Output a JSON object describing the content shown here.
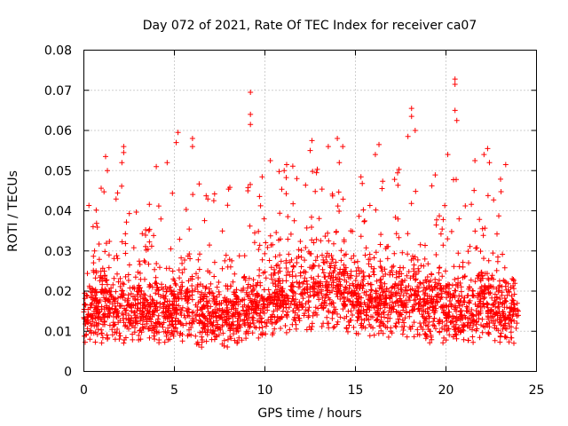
{
  "chart_data": {
    "type": "scatter",
    "title": "Day 072 of 2021, Rate Of TEC Index for receiver ca07",
    "xlabel": "GPS time / hours",
    "ylabel": "ROTI / TECUs",
    "xlim": [
      0,
      25
    ],
    "ylim": [
      0,
      0.08
    ],
    "xticks": [
      "0",
      "5",
      "10",
      "15",
      "20",
      "25"
    ],
    "yticks": [
      "0",
      "0.01",
      "0.02",
      "0.03",
      "0.04",
      "0.05",
      "0.06",
      "0.07",
      "0.08"
    ],
    "grid": true,
    "marker": "plus",
    "color": "#ff0000",
    "density_profile": {
      "x": [
        0,
        1,
        2,
        3,
        4,
        5,
        6,
        7,
        8,
        9,
        10,
        11,
        12,
        13,
        14,
        15,
        16,
        17,
        18,
        19,
        20,
        21,
        22,
        23,
        24
      ],
      "typical_low": [
        0.007,
        0.007,
        0.007,
        0.007,
        0.007,
        0.007,
        0.006,
        0.006,
        0.006,
        0.007,
        0.008,
        0.009,
        0.009,
        0.01,
        0.01,
        0.009,
        0.008,
        0.008,
        0.008,
        0.007,
        0.007,
        0.007,
        0.007,
        0.007,
        0.007
      ],
      "typical_high": [
        0.025,
        0.03,
        0.03,
        0.028,
        0.028,
        0.03,
        0.03,
        0.028,
        0.028,
        0.03,
        0.032,
        0.035,
        0.038,
        0.038,
        0.038,
        0.035,
        0.033,
        0.033,
        0.035,
        0.032,
        0.03,
        0.03,
        0.032,
        0.03,
        0.028
      ]
    },
    "notable_points": [
      {
        "x": 9.2,
        "y": 0.0695
      },
      {
        "x": 9.2,
        "y": 0.064
      },
      {
        "x": 9.2,
        "y": 0.0615
      },
      {
        "x": 20.5,
        "y": 0.0728
      },
      {
        "x": 20.5,
        "y": 0.0715
      },
      {
        "x": 20.5,
        "y": 0.065
      },
      {
        "x": 20.6,
        "y": 0.0625
      },
      {
        "x": 18.1,
        "y": 0.0655
      },
      {
        "x": 18.1,
        "y": 0.0635
      },
      {
        "x": 18.3,
        "y": 0.06
      },
      {
        "x": 17.9,
        "y": 0.0585
      },
      {
        "x": 5.2,
        "y": 0.0595
      },
      {
        "x": 5.1,
        "y": 0.057
      },
      {
        "x": 6.0,
        "y": 0.058
      },
      {
        "x": 6.0,
        "y": 0.056
      },
      {
        "x": 2.2,
        "y": 0.056
      },
      {
        "x": 2.2,
        "y": 0.0545
      },
      {
        "x": 2.1,
        "y": 0.052
      },
      {
        "x": 1.2,
        "y": 0.0535
      },
      {
        "x": 1.3,
        "y": 0.05
      },
      {
        "x": 12.6,
        "y": 0.0575
      },
      {
        "x": 12.5,
        "y": 0.055
      },
      {
        "x": 13.5,
        "y": 0.056
      },
      {
        "x": 14.0,
        "y": 0.058
      },
      {
        "x": 14.3,
        "y": 0.056
      },
      {
        "x": 16.3,
        "y": 0.0565
      },
      {
        "x": 16.1,
        "y": 0.054
      },
      {
        "x": 22.1,
        "y": 0.054
      },
      {
        "x": 22.3,
        "y": 0.0555
      },
      {
        "x": 22.4,
        "y": 0.052
      },
      {
        "x": 21.6,
        "y": 0.0525
      },
      {
        "x": 20.1,
        "y": 0.054
      },
      {
        "x": 23.3,
        "y": 0.0515
      },
      {
        "x": 4.0,
        "y": 0.051
      },
      {
        "x": 4.6,
        "y": 0.052
      },
      {
        "x": 11.2,
        "y": 0.0515
      },
      {
        "x": 10.3,
        "y": 0.0525
      }
    ]
  }
}
